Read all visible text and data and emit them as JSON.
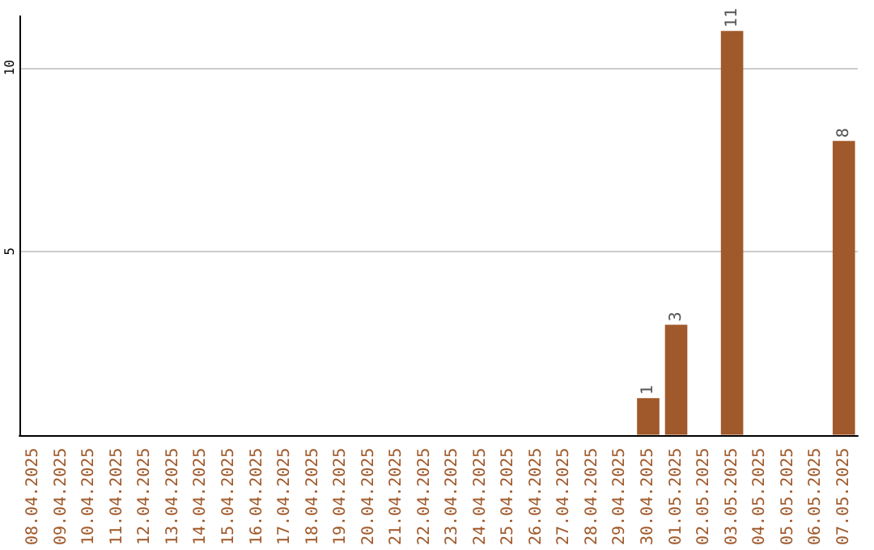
{
  "chart_data": {
    "type": "bar",
    "categories": [
      "08.04.2025",
      "09.04.2025",
      "10.04.2025",
      "11.04.2025",
      "12.04.2025",
      "13.04.2025",
      "14.04.2025",
      "15.04.2025",
      "16.04.2025",
      "17.04.2025",
      "18.04.2025",
      "19.04.2025",
      "20.04.2025",
      "21.04.2025",
      "22.04.2025",
      "23.04.2025",
      "24.04.2025",
      "25.04.2025",
      "26.04.2025",
      "27.04.2025",
      "28.04.2025",
      "29.04.2025",
      "30.04.2025",
      "01.05.2025",
      "02.05.2025",
      "03.05.2025",
      "04.05.2025",
      "05.05.2025",
      "06.05.2025",
      "07.05.2025"
    ],
    "values": [
      0,
      0,
      0,
      0,
      0,
      0,
      0,
      0,
      0,
      0,
      0,
      0,
      0,
      0,
      0,
      0,
      0,
      0,
      0,
      0,
      0,
      0,
      1,
      3,
      0,
      11,
      0,
      0,
      0,
      8
    ],
    "value_labels": [
      null,
      null,
      null,
      null,
      null,
      null,
      null,
      null,
      null,
      null,
      null,
      null,
      null,
      null,
      null,
      null,
      null,
      null,
      null,
      null,
      null,
      null,
      "1",
      "3",
      null,
      "11",
      null,
      null,
      null,
      "8"
    ],
    "color": "#a0592a",
    "ylim": [
      0,
      11.4
    ],
    "yticks": [
      5,
      10
    ],
    "grid": "y"
  }
}
